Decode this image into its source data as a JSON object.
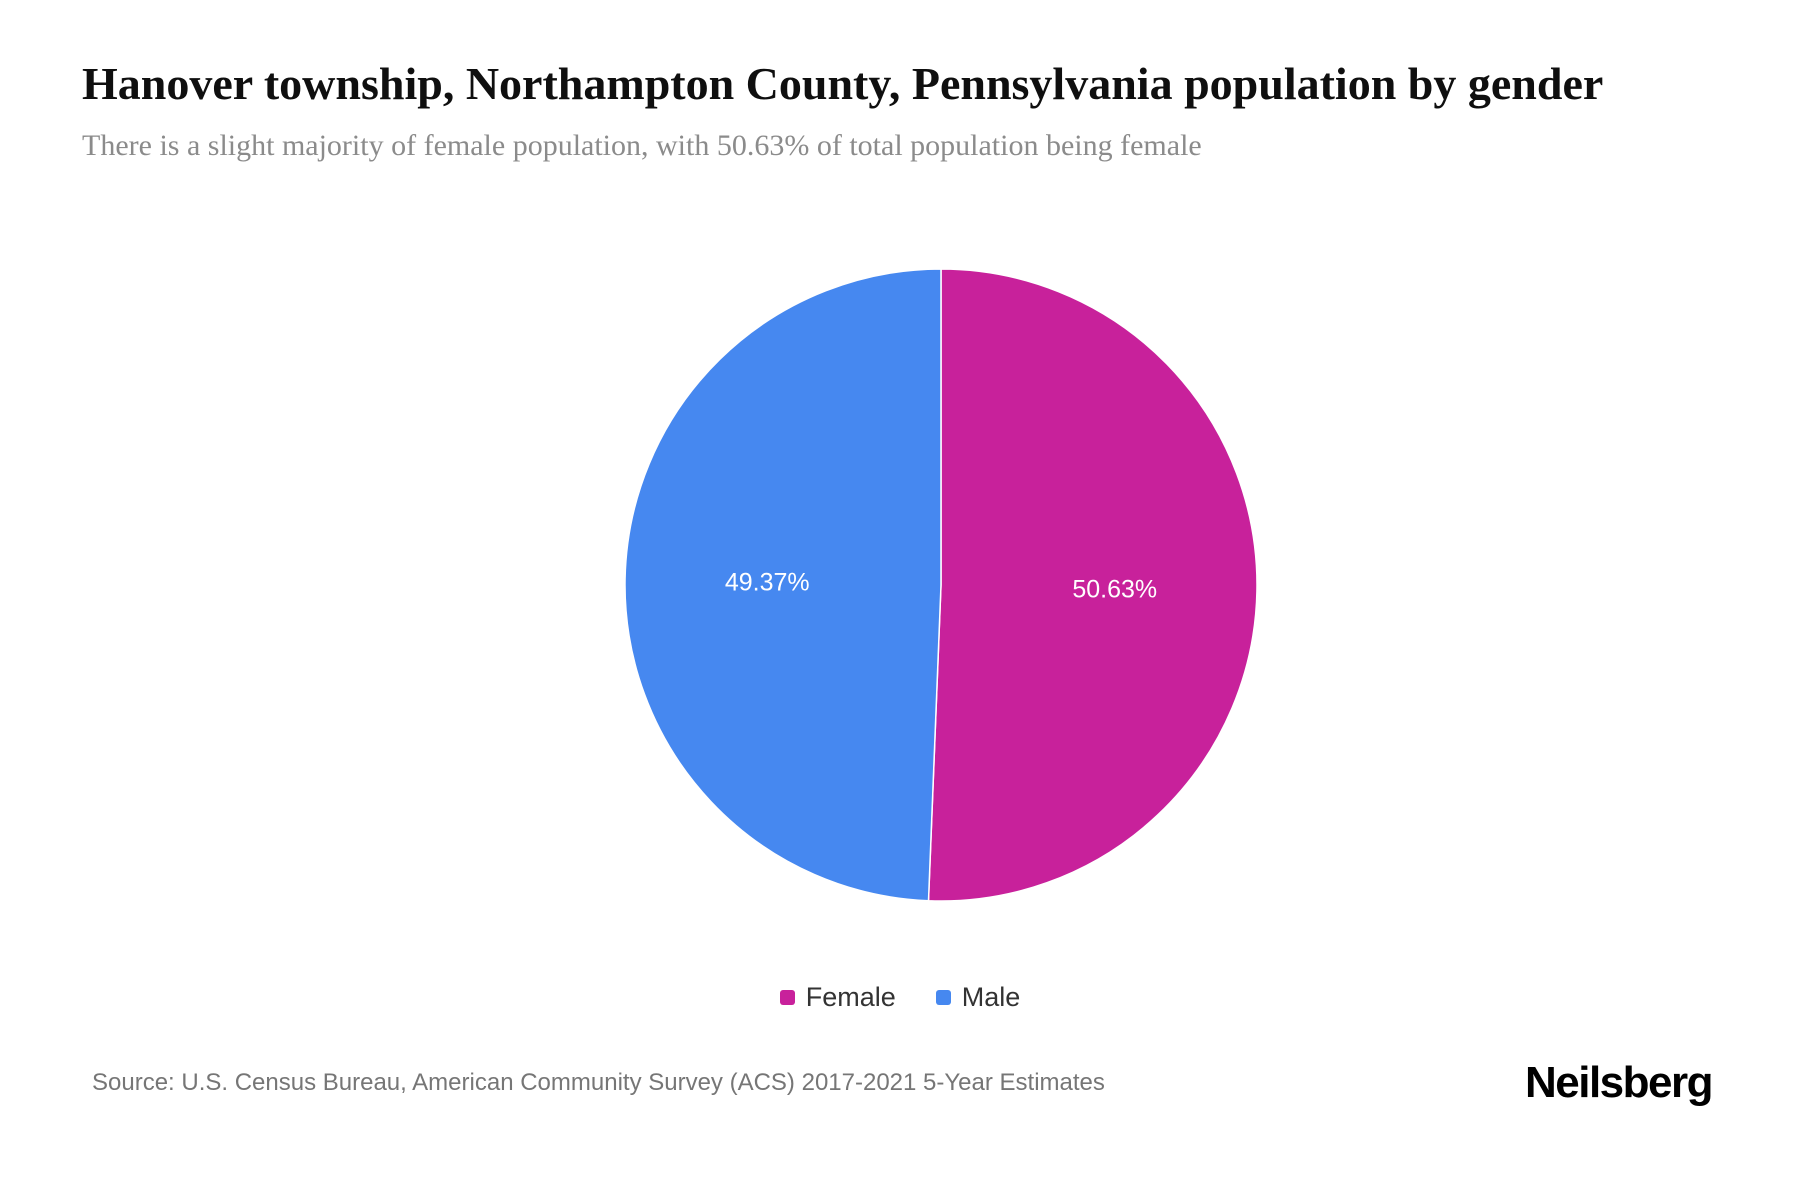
{
  "page": {
    "title": "Hanover township, Northampton County, Pennsylvania population by gender",
    "subtitle": "There is a slight majority of female population, with 50.63% of total population being female",
    "source": "Source: U.S. Census Bureau, American Community Survey (ACS) 2017-2021 5-Year Estimates",
    "brand": "Neilsberg"
  },
  "chart_data": {
    "type": "pie",
    "title": "Hanover township, Northampton County, Pennsylvania population by gender",
    "subtitle": "There is a slight majority of female population, with 50.63% of total population being female",
    "start_angle_deg": 0,
    "direction": "clockwise",
    "legend_position": "bottom",
    "slices": [
      {
        "label": "Female",
        "value": 50.63,
        "display": "50.63%",
        "color": "#c8219b"
      },
      {
        "label": "Male",
        "value": 49.37,
        "display": "49.37%",
        "color": "#4688f0"
      }
    ]
  }
}
